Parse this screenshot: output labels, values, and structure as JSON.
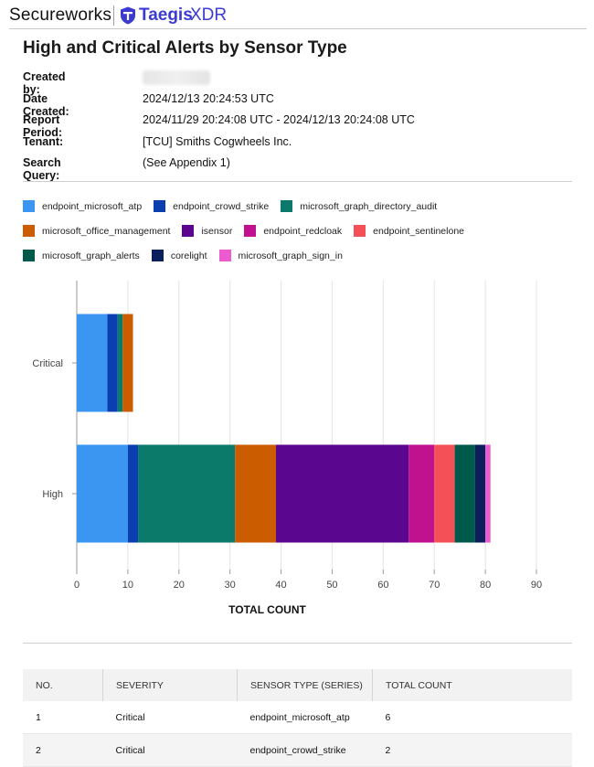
{
  "header": {
    "brand": "Secureworks",
    "product_name": "Taegis",
    "product_suffix": "XDR",
    "colors": {
      "taegis": "#3b3bd1"
    }
  },
  "report": {
    "title": "High and Critical Alerts by Sensor Type",
    "meta": [
      {
        "label": "Created by:",
        "value": ""
      },
      {
        "label": "Date Created:",
        "value": "2024/12/13 20:24:53 UTC"
      },
      {
        "label": "Report Period:",
        "value": "2024/11/29 20:24:08 UTC - 2024/12/13 20:24:08 UTC"
      },
      {
        "label": "Tenant:",
        "value": "[TCU] Smiths Cogwheels Inc."
      },
      {
        "label": "Search Query:",
        "value": "(See Appendix 1)"
      }
    ]
  },
  "legend": [
    {
      "name": "endpoint_microsoft_atp",
      "color": "#3a96f0"
    },
    {
      "name": "endpoint_crowd_strike",
      "color": "#0b3fb0"
    },
    {
      "name": "microsoft_graph_directory_audit",
      "color": "#0b7a6a"
    },
    {
      "name": "microsoft_office_management",
      "color": "#cc5c00"
    },
    {
      "name": "isensor",
      "color": "#5b068f"
    },
    {
      "name": "endpoint_redcloak",
      "color": "#c0128e"
    },
    {
      "name": "endpoint_sentinelone",
      "color": "#f45058"
    },
    {
      "name": "microsoft_graph_alerts",
      "color": "#005a4c"
    },
    {
      "name": "corelight",
      "color": "#0b1f5c"
    },
    {
      "name": "microsoft_graph_sign_in",
      "color": "#ec5bd0"
    }
  ],
  "chart_data": {
    "type": "bar",
    "orientation": "horizontal",
    "stacked": true,
    "categories": [
      "Critical",
      "High"
    ],
    "series": [
      {
        "name": "endpoint_microsoft_atp",
        "values": [
          6,
          10
        ]
      },
      {
        "name": "endpoint_crowd_strike",
        "values": [
          2,
          2
        ]
      },
      {
        "name": "microsoft_graph_directory_audit",
        "values": [
          1,
          19
        ]
      },
      {
        "name": "microsoft_office_management",
        "values": [
          2,
          8
        ]
      },
      {
        "name": "isensor",
        "values": [
          0,
          26
        ]
      },
      {
        "name": "endpoint_redcloak",
        "values": [
          0,
          5
        ]
      },
      {
        "name": "endpoint_sentinelone",
        "values": [
          0,
          4
        ]
      },
      {
        "name": "microsoft_graph_alerts",
        "values": [
          0,
          4
        ]
      },
      {
        "name": "corelight",
        "values": [
          0,
          2
        ]
      },
      {
        "name": "microsoft_graph_sign_in",
        "values": [
          0,
          1
        ]
      }
    ],
    "xlabel": "TOTAL COUNT",
    "ylabel": "",
    "xlim": [
      0,
      90
    ],
    "xticks": [
      0,
      10,
      20,
      30,
      40,
      50,
      60,
      70,
      80,
      90
    ],
    "grid": true,
    "legend_position": "top"
  },
  "table": {
    "columns": [
      "NO.",
      "SEVERITY",
      "SENSOR TYPE (SERIES)",
      "TOTAL COUNT"
    ],
    "rows": [
      [
        "1",
        "Critical",
        "endpoint_microsoft_atp",
        "6"
      ],
      [
        "2",
        "Critical",
        "endpoint_crowd_strike",
        "2"
      ]
    ]
  }
}
